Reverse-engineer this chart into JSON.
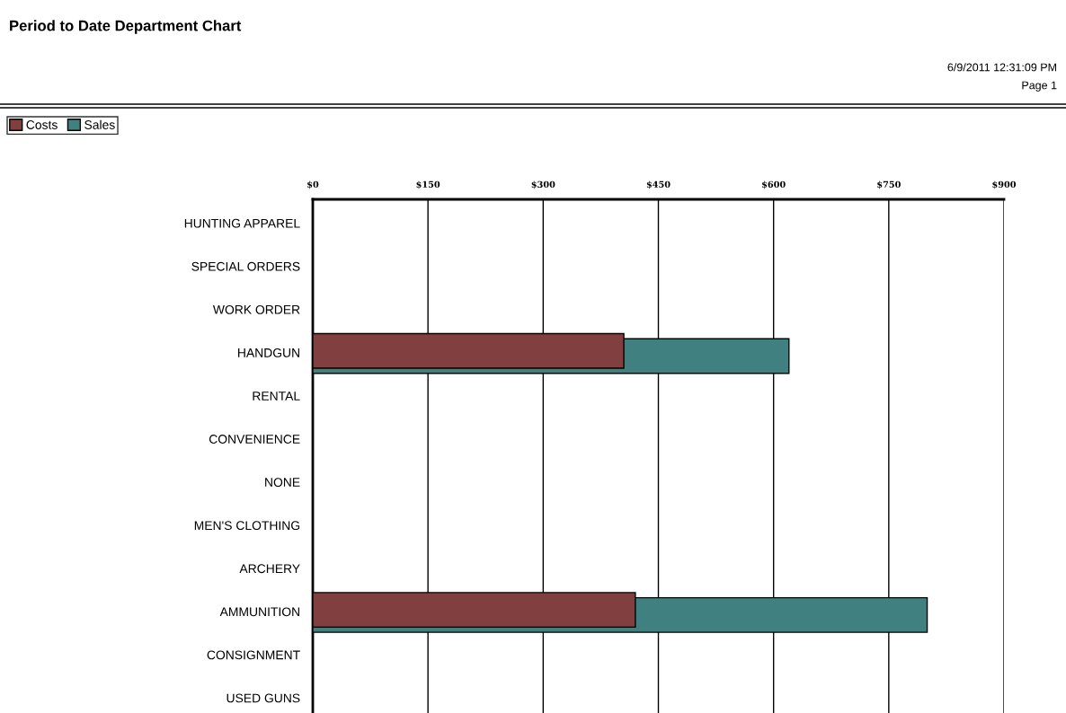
{
  "chart_data": {
    "type": "bar",
    "orientation": "horizontal",
    "title": "Period to Date Department Chart",
    "annotations": [
      "6/9/2011 12:31:09 PM",
      "Page 1"
    ],
    "categories": [
      "HUNTING APPAREL",
      "SPECIAL ORDERS",
      "WORK ORDER",
      "HANDGUN",
      "RENTAL",
      "CONVENIENCE",
      "NONE",
      "MEN'S CLOTHING",
      "ARCHERY",
      "AMMUNITION",
      "CONSIGNMENT",
      "USED GUNS"
    ],
    "series": [
      {
        "name": "Costs",
        "color": "#823f3f",
        "values": [
          0,
          0,
          0,
          405,
          0,
          0,
          0,
          0,
          0,
          420,
          0,
          0
        ]
      },
      {
        "name": "Sales",
        "color": "#418080",
        "values": [
          0,
          0,
          0,
          620,
          0,
          0,
          0,
          0,
          0,
          800,
          0,
          0
        ]
      }
    ],
    "xlim": [
      0,
      900
    ],
    "xticks": [
      {
        "value": 0,
        "label": "$0"
      },
      {
        "value": 150,
        "label": "$150"
      },
      {
        "value": 300,
        "label": "$300"
      },
      {
        "value": 450,
        "label": "$450"
      },
      {
        "value": 600,
        "label": "$600"
      },
      {
        "value": 750,
        "label": "$750"
      },
      {
        "value": 900,
        "label": "$900"
      }
    ],
    "grid": "x",
    "legend": "top left"
  }
}
